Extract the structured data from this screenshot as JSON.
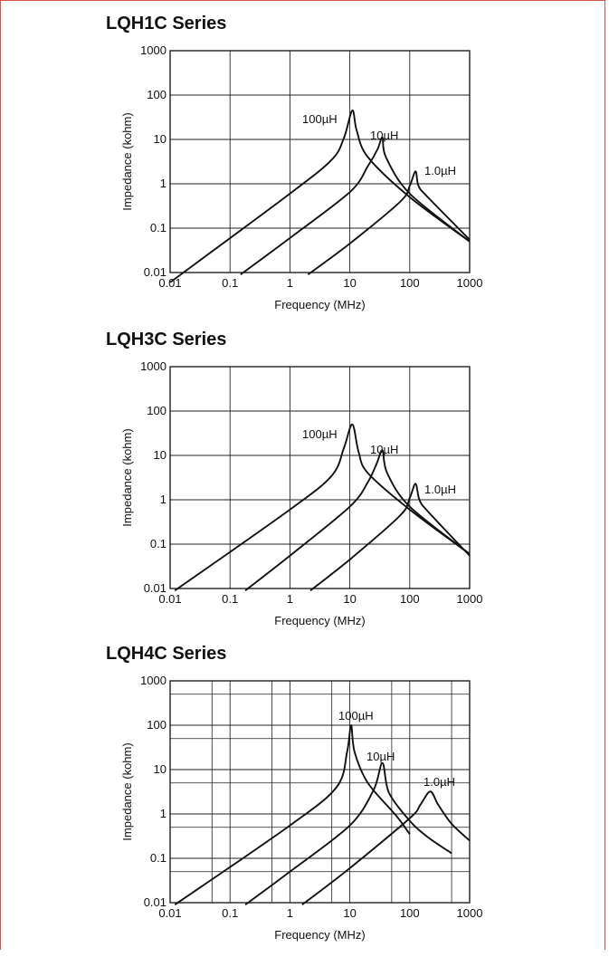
{
  "chart_data": [
    {
      "type": "line",
      "title": "LQH1C Series",
      "xlabel": "Frequency (MHz)",
      "ylabel": "Impedance (kohm)",
      "xscale": "log",
      "yscale": "log",
      "xlim": [
        0.01,
        1000
      ],
      "ylim": [
        0.01,
        1000
      ],
      "xticks": [
        "0.01",
        "0.1",
        "1",
        "10",
        "100",
        "1000"
      ],
      "yticks": [
        "1000",
        "100",
        "10",
        "1",
        "0.1",
        "0.01"
      ],
      "grid": "decades",
      "series": [
        {
          "name": "100µH",
          "label": "100",
          "unit": "µH",
          "points": [
            [
              0.01,
              0.006
            ],
            [
              1,
              0.6
            ],
            [
              5,
              3.5
            ],
            [
              8,
              11
            ],
            [
              11,
              45
            ],
            [
              13,
              16
            ],
            [
              20,
              4
            ],
            [
              100,
              0.5
            ],
            [
              1000,
              0.05
            ]
          ]
        },
        {
          "name": "10µH",
          "label": "10",
          "unit": "µH",
          "points": [
            [
              0.15,
              0.009
            ],
            [
              1,
              0.06
            ],
            [
              10,
              0.65
            ],
            [
              20,
              2.5
            ],
            [
              29,
              6
            ],
            [
              35,
              11
            ],
            [
              40,
              4
            ],
            [
              100,
              0.6
            ],
            [
              1000,
              0.05
            ]
          ]
        },
        {
          "name": "1.0µH",
          "label": "1.0",
          "unit": "µH",
          "points": [
            [
              2,
              0.009
            ],
            [
              10,
              0.045
            ],
            [
              70,
              0.4
            ],
            [
              100,
              0.9
            ],
            [
              125,
              1.9
            ],
            [
              140,
              0.9
            ],
            [
              200,
              0.5
            ],
            [
              1000,
              0.055
            ]
          ]
        }
      ]
    },
    {
      "type": "line",
      "title": "LQH3C Series",
      "xlabel": "Frequency (MHz)",
      "ylabel": "Impedance (kohm)",
      "xscale": "log",
      "yscale": "log",
      "xlim": [
        0.01,
        1000
      ],
      "ylim": [
        0.01,
        1000
      ],
      "xticks": [
        "0.01",
        "0.1",
        "1",
        "10",
        "100",
        "1000"
      ],
      "yticks": [
        "1000",
        "100",
        "10",
        "1",
        "0.1",
        "0.01"
      ],
      "grid": "decades",
      "series": [
        {
          "name": "100µH",
          "label": "100",
          "unit": "µH",
          "points": [
            [
              0.012,
              0.009
            ],
            [
              1,
              0.6
            ],
            [
              5,
              3.5
            ],
            [
              8,
              15
            ],
            [
              11,
              50
            ],
            [
              14,
              12
            ],
            [
              20,
              4
            ],
            [
              100,
              0.6
            ],
            [
              1000,
              0.06
            ]
          ]
        },
        {
          "name": "10µH",
          "label": "10",
          "unit": "µH",
          "points": [
            [
              0.18,
              0.009
            ],
            [
              1,
              0.055
            ],
            [
              10,
              0.7
            ],
            [
              20,
              2.5
            ],
            [
              28,
              6.5
            ],
            [
              35,
              13
            ],
            [
              42,
              4
            ],
            [
              100,
              0.7
            ],
            [
              1000,
              0.06
            ]
          ]
        },
        {
          "name": "1.0µH",
          "label": "1.0",
          "unit": "µH",
          "points": [
            [
              2.2,
              0.009
            ],
            [
              10,
              0.045
            ],
            [
              70,
              0.45
            ],
            [
              100,
              1.1
            ],
            [
              125,
              2.3
            ],
            [
              145,
              1
            ],
            [
              200,
              0.55
            ],
            [
              1000,
              0.055
            ]
          ]
        }
      ]
    },
    {
      "type": "line",
      "title": "LQH4C Series",
      "xlabel": "Frequency (MHz)",
      "ylabel": "Impedance (kohm)",
      "xscale": "log",
      "yscale": "log",
      "xlim": [
        0.01,
        1000
      ],
      "ylim": [
        0.01,
        1000
      ],
      "xticks": [
        "0.01",
        "0.1",
        "1",
        "10",
        "100",
        "1000"
      ],
      "yticks": [
        "1000",
        "100",
        "10",
        "1",
        "0.1",
        "0.01"
      ],
      "grid": "decades-with-half",
      "series": [
        {
          "name": "100µH",
          "label": "100",
          "unit": "µH",
          "points": [
            [
              0.012,
              0.009
            ],
            [
              1,
              0.55
            ],
            [
              6,
              4
            ],
            [
              9,
              25
            ],
            [
              10.5,
              100
            ],
            [
              12,
              25
            ],
            [
              20,
              5
            ],
            [
              60,
              0.9
            ],
            [
              100,
              0.35
            ]
          ]
        },
        {
          "name": "10µH",
          "label": "10",
          "unit": "µH",
          "points": [
            [
              0.18,
              0.009
            ],
            [
              1,
              0.05
            ],
            [
              10,
              0.55
            ],
            [
              25,
              3.5
            ],
            [
              35,
              14
            ],
            [
              45,
              3
            ],
            [
              100,
              0.7
            ],
            [
              200,
              0.3
            ],
            [
              500,
              0.13
            ]
          ]
        },
        {
          "name": "1.0µH",
          "label": "1.0",
          "unit": "µH",
          "points": [
            [
              1.6,
              0.009
            ],
            [
              10,
              0.06
            ],
            [
              100,
              0.8
            ],
            [
              150,
              1.6
            ],
            [
              220,
              3.2
            ],
            [
              300,
              1.6
            ],
            [
              500,
              0.6
            ],
            [
              1000,
              0.25
            ]
          ]
        }
      ]
    }
  ]
}
